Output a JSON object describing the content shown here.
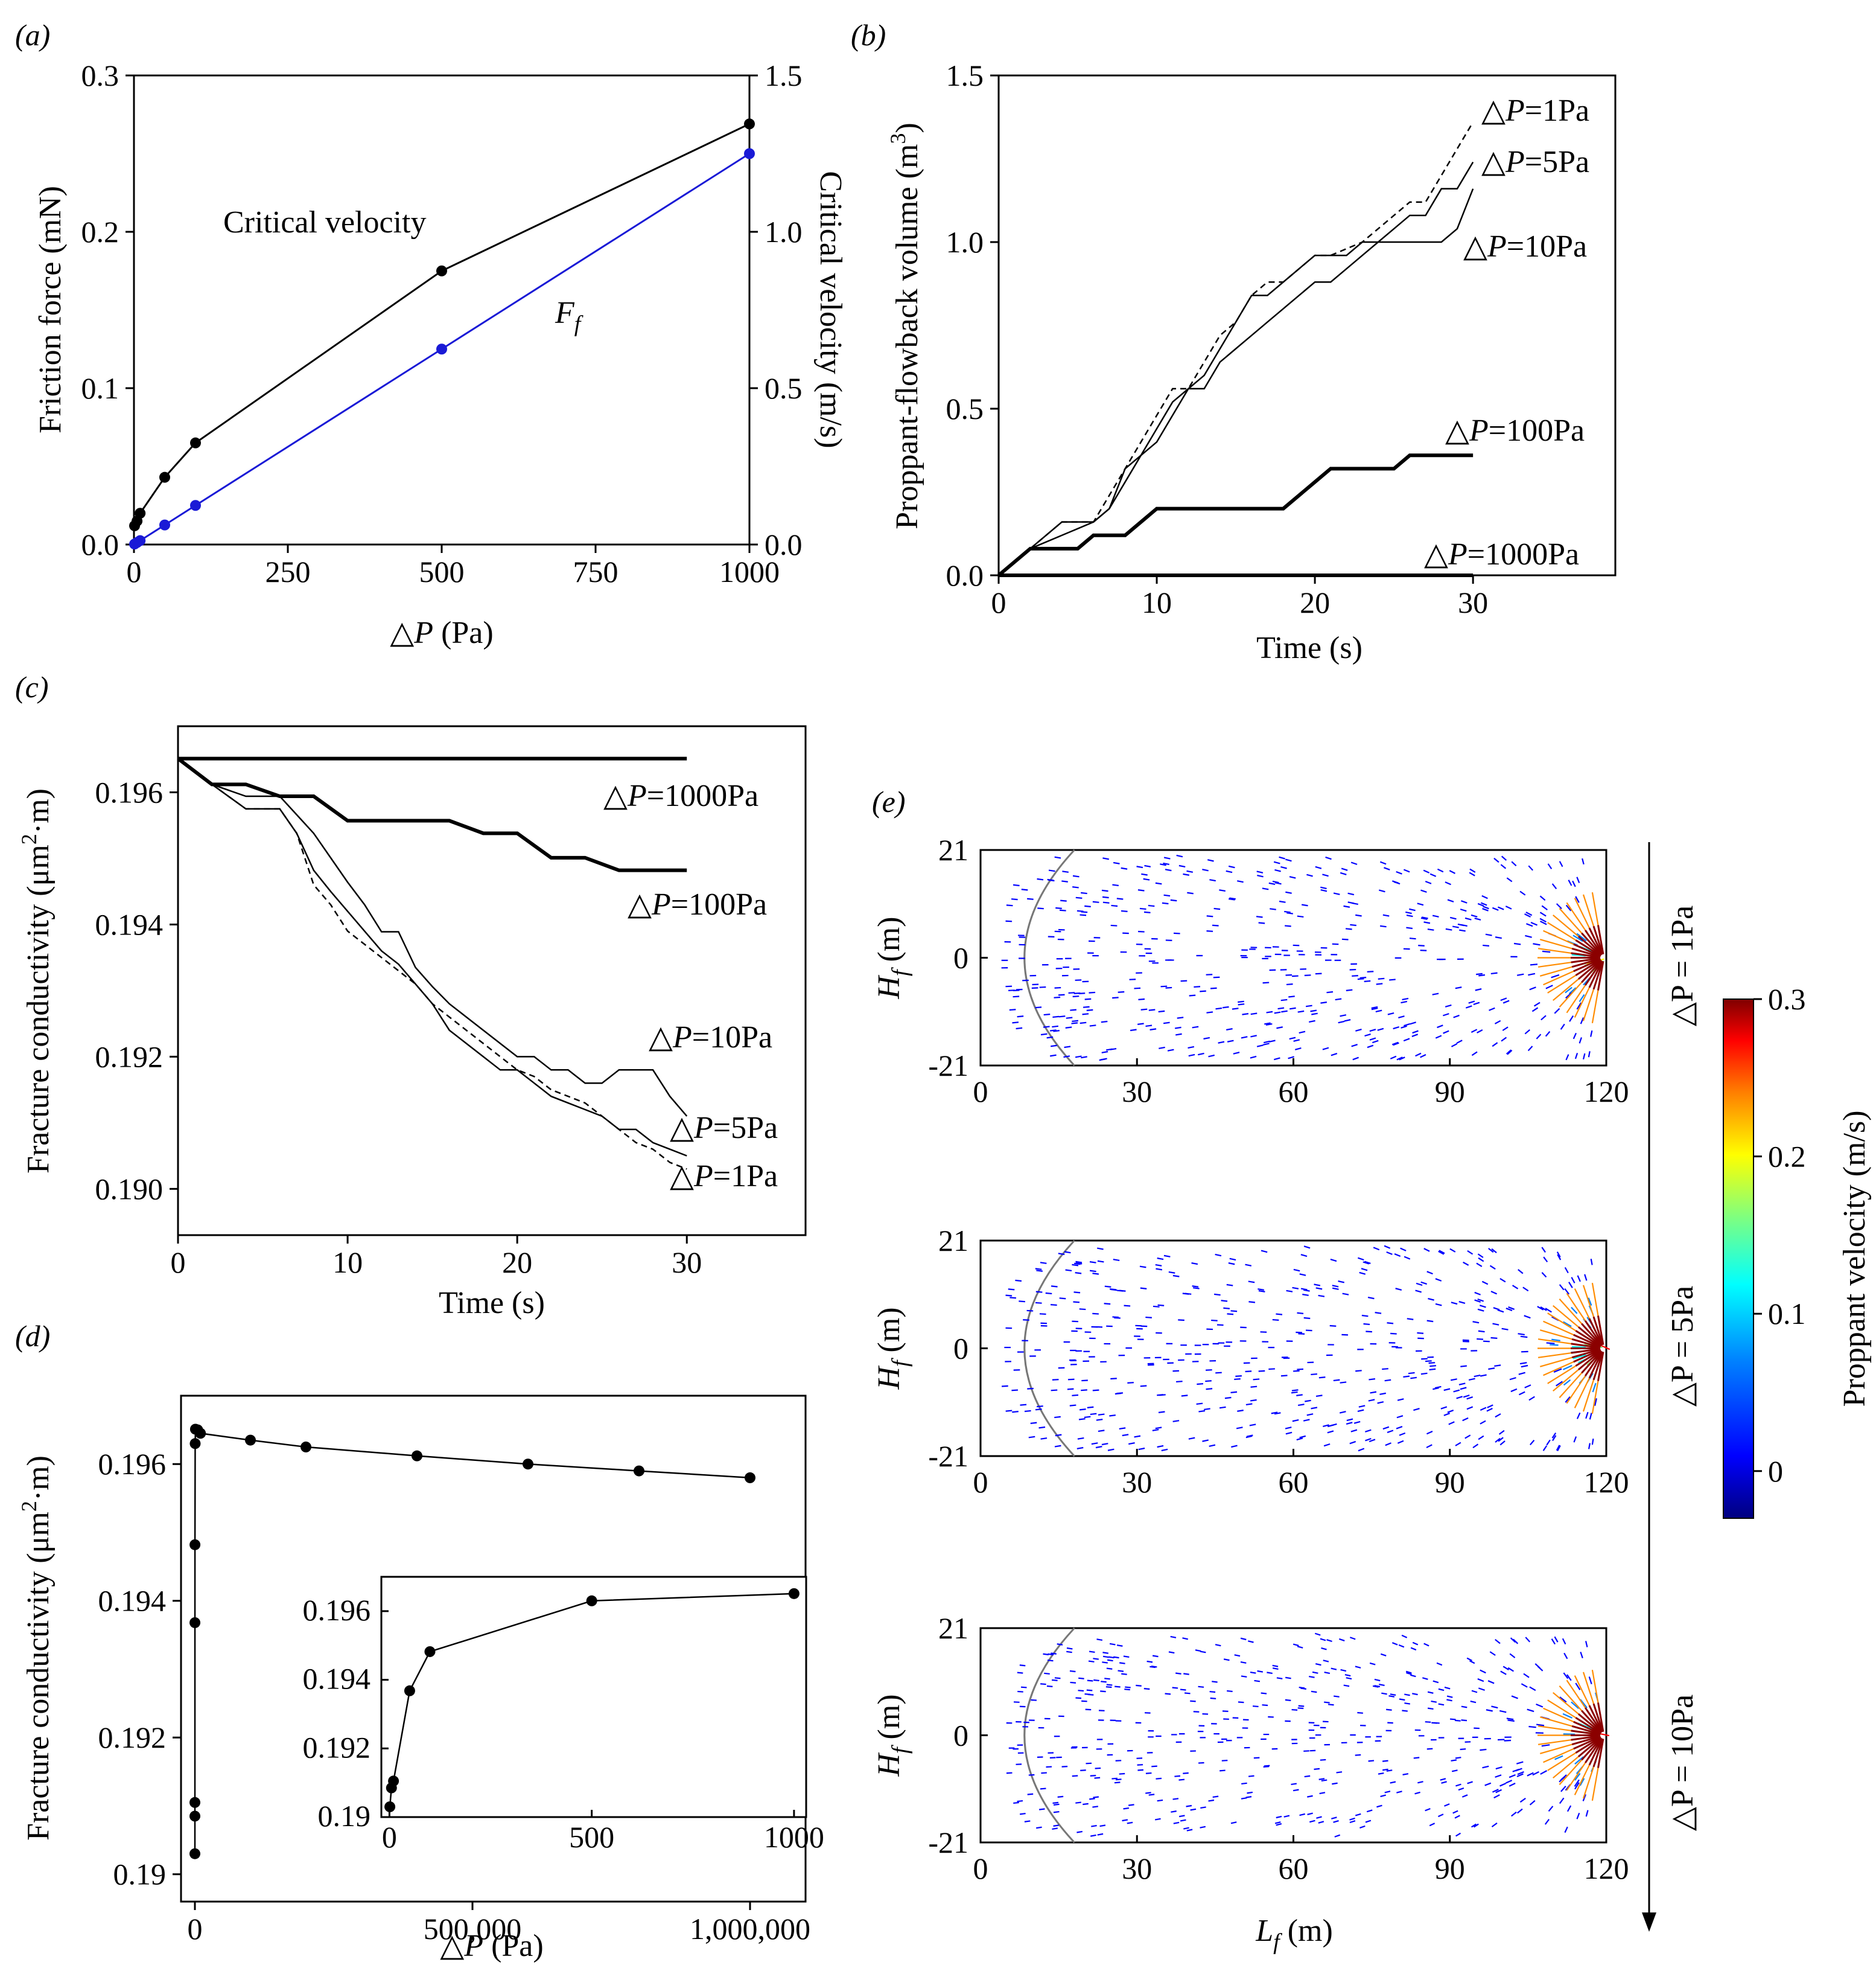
{
  "panels": {
    "a": "(a)",
    "b": "(b)",
    "c": "(c)",
    "d": "(d)",
    "e": "(e)"
  },
  "chart_data": [
    {
      "id": "a",
      "type": "line",
      "xlabel": "△P (Pa)",
      "ylabel": "Friction force (mN)",
      "y2label": "Critical velocity (m/s)",
      "xlim": [
        0,
        1000
      ],
      "ylim": [
        0,
        0.3
      ],
      "y2lim": [
        0,
        1.5
      ],
      "xticks": [
        0,
        250,
        500,
        750,
        1000
      ],
      "xticklabels": [
        "0",
        "250",
        "500",
        "750",
        "1000"
      ],
      "yticks": [
        0.0,
        0.1,
        0.2,
        0.3
      ],
      "yticklabels": [
        "0.0",
        "0.1",
        "0.2",
        "0.3"
      ],
      "y2ticks": [
        0.0,
        0.5,
        1.0,
        1.5
      ],
      "y2ticklabels": [
        "0.0",
        "0.5",
        "1.0",
        "1.5"
      ],
      "series": [
        {
          "name": "Critical velocity",
          "axis": "right",
          "color": "#000000",
          "x": [
            1,
            5,
            10,
            50,
            100,
            500,
            1000
          ],
          "y": [
            0.06,
            0.075,
            0.1,
            0.215,
            0.325,
            0.875,
            1.345
          ]
        },
        {
          "name": "F",
          "sub": "f",
          "axis": "left",
          "color": "#1a1ad6",
          "x": [
            1,
            5,
            10,
            50,
            100,
            500,
            1000
          ],
          "y": [
            0.0003,
            0.0013,
            0.0025,
            0.0125,
            0.025,
            0.125,
            0.25
          ]
        }
      ]
    },
    {
      "id": "b",
      "type": "line",
      "xlabel": "Time (s)",
      "ylabel": "Proppant-flowback volume (m",
      "ylabel_sup": "3",
      "ylabel_end": ")",
      "xlim": [
        0,
        30
      ],
      "ylim": [
        0,
        1.5
      ],
      "xticks": [
        0,
        10,
        20,
        30
      ],
      "xticklabels": [
        "0",
        "10",
        "20",
        "30"
      ],
      "yticks": [
        0.0,
        0.5,
        1.0,
        1.5
      ],
      "yticklabels": [
        "0.0",
        "0.5",
        "1.0",
        "1.5"
      ],
      "series": [
        {
          "name": "1Pa",
          "style": "dashed",
          "x": [
            0,
            2,
            4,
            6,
            7,
            8,
            9,
            10,
            11,
            12,
            13,
            14,
            15,
            16,
            17,
            18,
            19,
            20,
            21,
            22,
            23,
            24,
            25,
            26,
            27,
            28,
            29,
            30
          ],
          "y": [
            0,
            0.08,
            0.16,
            0.16,
            0.24,
            0.32,
            0.4,
            0.48,
            0.56,
            0.56,
            0.64,
            0.72,
            0.76,
            0.84,
            0.88,
            0.88,
            0.92,
            0.96,
            0.96,
            0.98,
            1.0,
            1.04,
            1.08,
            1.12,
            1.12,
            1.2,
            1.28,
            1.36
          ]
        },
        {
          "name": "5Pa",
          "style": "solid",
          "x": [
            0,
            2,
            4,
            6,
            7,
            8,
            9,
            10,
            11,
            12,
            13,
            14,
            15,
            16,
            17,
            18,
            19,
            20,
            21,
            22,
            23,
            24,
            25,
            26,
            27,
            28,
            29,
            30
          ],
          "y": [
            0,
            0.08,
            0.16,
            0.16,
            0.2,
            0.28,
            0.36,
            0.44,
            0.52,
            0.56,
            0.6,
            0.68,
            0.76,
            0.84,
            0.84,
            0.88,
            0.92,
            0.96,
            0.96,
            0.96,
            1.0,
            1.0,
            1.04,
            1.08,
            1.08,
            1.16,
            1.16,
            1.24
          ]
        },
        {
          "name": "10Pa",
          "style": "solid",
          "x": [
            0,
            2,
            4,
            6,
            7,
            8,
            9,
            10,
            11,
            12,
            13,
            14,
            15,
            16,
            17,
            18,
            19,
            20,
            21,
            22,
            23,
            24,
            25,
            26,
            27,
            28,
            29,
            30
          ],
          "y": [
            0,
            0.08,
            0.12,
            0.16,
            0.2,
            0.32,
            0.36,
            0.4,
            0.48,
            0.56,
            0.56,
            0.64,
            0.68,
            0.72,
            0.76,
            0.8,
            0.84,
            0.88,
            0.88,
            0.92,
            0.96,
            1.0,
            1.0,
            1.0,
            1.0,
            1.0,
            1.04,
            1.16
          ]
        },
        {
          "name": "100Pa",
          "style": "thick",
          "x": [
            0,
            2,
            5,
            6,
            8,
            10,
            12,
            14,
            16,
            18,
            20,
            21,
            23,
            25,
            26,
            27,
            28,
            30
          ],
          "y": [
            0,
            0.08,
            0.08,
            0.12,
            0.12,
            0.2,
            0.2,
            0.2,
            0.2,
            0.2,
            0.28,
            0.32,
            0.32,
            0.32,
            0.36,
            0.36,
            0.36,
            0.36
          ]
        },
        {
          "name": "1000Pa",
          "style": "thick",
          "x": [
            0,
            30
          ],
          "y": [
            0,
            0
          ]
        }
      ],
      "labels": [
        {
          "prefix": "△",
          "var": "P",
          "text": "=1Pa"
        },
        {
          "prefix": "△",
          "var": "P",
          "text": "=5Pa"
        },
        {
          "prefix": "△",
          "var": "P",
          "text": "=10Pa"
        },
        {
          "prefix": "△",
          "var": "P",
          "text": "=100Pa"
        },
        {
          "prefix": "△",
          "var": "P",
          "text": "=1000Pa"
        }
      ]
    },
    {
      "id": "c",
      "type": "line",
      "xlabel": "Time (s)",
      "ylabel": "Fracture conductivity (μm",
      "ylabel_sup": "2",
      "ylabel_end": "·m)",
      "xlim": [
        0,
        37
      ],
      "ylim": [
        0.1893,
        0.197
      ],
      "xticks": [
        0,
        10,
        20,
        30
      ],
      "xticklabels": [
        "0",
        "10",
        "20",
        "30"
      ],
      "yticks": [
        0.19,
        0.192,
        0.194,
        0.196
      ],
      "yticklabels": [
        "0.190",
        "0.192",
        "0.194",
        "0.196"
      ],
      "series": [
        {
          "name": "1000Pa",
          "style": "thick",
          "x": [
            0,
            30
          ],
          "y": [
            0.19651,
            0.19651
          ]
        },
        {
          "name": "100Pa",
          "style": "thick",
          "x": [
            0,
            2,
            4,
            6,
            8,
            10,
            12,
            14,
            16,
            18,
            20,
            22,
            24,
            26,
            28,
            30
          ],
          "y": [
            0.19651,
            0.19612,
            0.19612,
            0.19594,
            0.19594,
            0.19557,
            0.19557,
            0.19557,
            0.19557,
            0.19538,
            0.19538,
            0.19501,
            0.19501,
            0.19482,
            0.19482,
            0.19482
          ]
        },
        {
          "name": "10Pa",
          "style": "solid",
          "x": [
            0,
            2,
            4,
            6,
            8,
            9,
            10,
            11,
            12,
            13,
            14,
            15,
            16,
            17,
            18,
            19,
            20,
            21,
            22,
            23,
            24,
            25,
            26,
            27,
            28,
            29,
            30
          ],
          "y": [
            0.19651,
            0.19612,
            0.19594,
            0.19594,
            0.19538,
            0.19501,
            0.19464,
            0.1943,
            0.19389,
            0.19389,
            0.19335,
            0.19306,
            0.1928,
            0.1926,
            0.1924,
            0.1922,
            0.192,
            0.192,
            0.1918,
            0.1918,
            0.1916,
            0.1916,
            0.1918,
            0.1918,
            0.1918,
            0.1914,
            0.1911
          ]
        },
        {
          "name": "5Pa",
          "style": "solid",
          "x": [
            0,
            2,
            4,
            6,
            7,
            8,
            9,
            10,
            11,
            12,
            13,
            14,
            15,
            16,
            17,
            18,
            19,
            20,
            21,
            22,
            23,
            24,
            25,
            26,
            27,
            28,
            29,
            30
          ],
          "y": [
            0.19651,
            0.19612,
            0.19575,
            0.19575,
            0.19538,
            0.19482,
            0.1945,
            0.1942,
            0.1939,
            0.1936,
            0.1934,
            0.1931,
            0.1928,
            0.1924,
            0.1922,
            0.192,
            0.1918,
            0.1918,
            0.1916,
            0.1914,
            0.1913,
            0.1912,
            0.1911,
            0.1909,
            0.1909,
            0.1907,
            0.1906,
            0.1905
          ]
        },
        {
          "name": "1Pa",
          "style": "dashed",
          "x": [
            0,
            2,
            4,
            6,
            7,
            8,
            9,
            10,
            11,
            12,
            13,
            14,
            15,
            16,
            17,
            18,
            19,
            20,
            21,
            22,
            23,
            24,
            25,
            26,
            27,
            28,
            29,
            30
          ],
          "y": [
            0.19651,
            0.19612,
            0.19575,
            0.19575,
            0.19538,
            0.1946,
            0.1943,
            0.1939,
            0.1937,
            0.1935,
            0.1933,
            0.1931,
            0.1928,
            0.1926,
            0.1924,
            0.1922,
            0.192,
            0.1918,
            0.1917,
            0.1915,
            0.1914,
            0.1913,
            0.1911,
            0.1909,
            0.1907,
            0.1906,
            0.1904,
            0.1903
          ]
        }
      ],
      "labels": [
        {
          "prefix": "△",
          "var": "P",
          "text": "=1000Pa"
        },
        {
          "prefix": "△",
          "var": "P",
          "text": "=100Pa"
        },
        {
          "prefix": "△",
          "var": "P",
          "text": "=10Pa"
        },
        {
          "prefix": "△",
          "var": "P",
          "text": "=5Pa"
        },
        {
          "prefix": "△",
          "var": "P",
          "text": "=1Pa"
        }
      ]
    },
    {
      "id": "d",
      "type": "line",
      "xlabel": "△P (Pa)",
      "ylabel": "Fracture conductivity (μm",
      "ylabel_sup": "2",
      "ylabel_end": "·m)",
      "xlim": [
        -25000,
        1100000
      ],
      "ylim": [
        0.19,
        0.197
      ],
      "xticks": [
        0,
        500000,
        1000000
      ],
      "xticklabels": [
        "0",
        "500,000",
        "1,000,000"
      ],
      "yticks": [
        0.19,
        0.192,
        0.194,
        0.196
      ],
      "yticklabels": [
        "0.19",
        "0.192",
        "0.194",
        "0.196"
      ],
      "series": [
        {
          "name": "main",
          "x": [
            1,
            5,
            10,
            50,
            100,
            500,
            1000,
            5000,
            10000,
            100000,
            200000,
            400000,
            600000,
            800000,
            1000000
          ],
          "y": [
            0.1903,
            0.19085,
            0.19105,
            0.19368,
            0.19482,
            0.1963,
            0.19651,
            0.1965,
            0.19645,
            0.19635,
            0.19625,
            0.19612,
            0.196,
            0.1959,
            0.1958
          ]
        }
      ],
      "inset": {
        "xlim": [
          -20,
          1030
        ],
        "ylim": [
          0.19,
          0.197
        ],
        "xticks": [
          0,
          500,
          1000
        ],
        "xticklabels": [
          "0",
          "500",
          "1000"
        ],
        "yticks": [
          0.19,
          0.192,
          0.194,
          0.196
        ],
        "yticklabels": [
          "0.19",
          "0.192",
          "0.194",
          "0.196"
        ],
        "x": [
          1,
          5,
          10,
          50,
          100,
          500,
          1000
        ],
        "y": [
          0.1903,
          0.19085,
          0.19105,
          0.19368,
          0.19482,
          0.1963,
          0.19651
        ]
      }
    },
    {
      "id": "e",
      "type": "vector-field",
      "xlabel": "L",
      "xlabel_sub": "f",
      "xlabel_unit": " (m)",
      "ylabel": "H",
      "ylabel_sub": "f",
      "ylabel_unit": " (m)",
      "xlim": [
        0,
        120
      ],
      "ylim": [
        -21,
        21
      ],
      "xticks": [
        0,
        30,
        60,
        90,
        120
      ],
      "xticklabels": [
        "0",
        "30",
        "60",
        "90",
        "120"
      ],
      "yticks": [
        -21,
        0,
        21
      ],
      "yticklabels": [
        "-21",
        "0",
        "21"
      ],
      "subplots": [
        {
          "label": "△P = 1Pa"
        },
        {
          "label": "△P = 5Pa"
        },
        {
          "label": "△P = 10Pa"
        }
      ],
      "colorbar": {
        "label": "Proppant velocity (m/s)",
        "range": [
          -0.03,
          0.3
        ],
        "ticks": [
          0,
          0.1,
          0.2,
          0.3
        ],
        "ticklabels": [
          "0",
          "0.1",
          "0.2",
          "0.3"
        ],
        "colors": [
          "#00007f",
          "#0000ff",
          "#007fff",
          "#00ffff",
          "#7fff7f",
          "#ffff00",
          "#ff7f00",
          "#ff0000",
          "#7f0000"
        ]
      }
    }
  ]
}
